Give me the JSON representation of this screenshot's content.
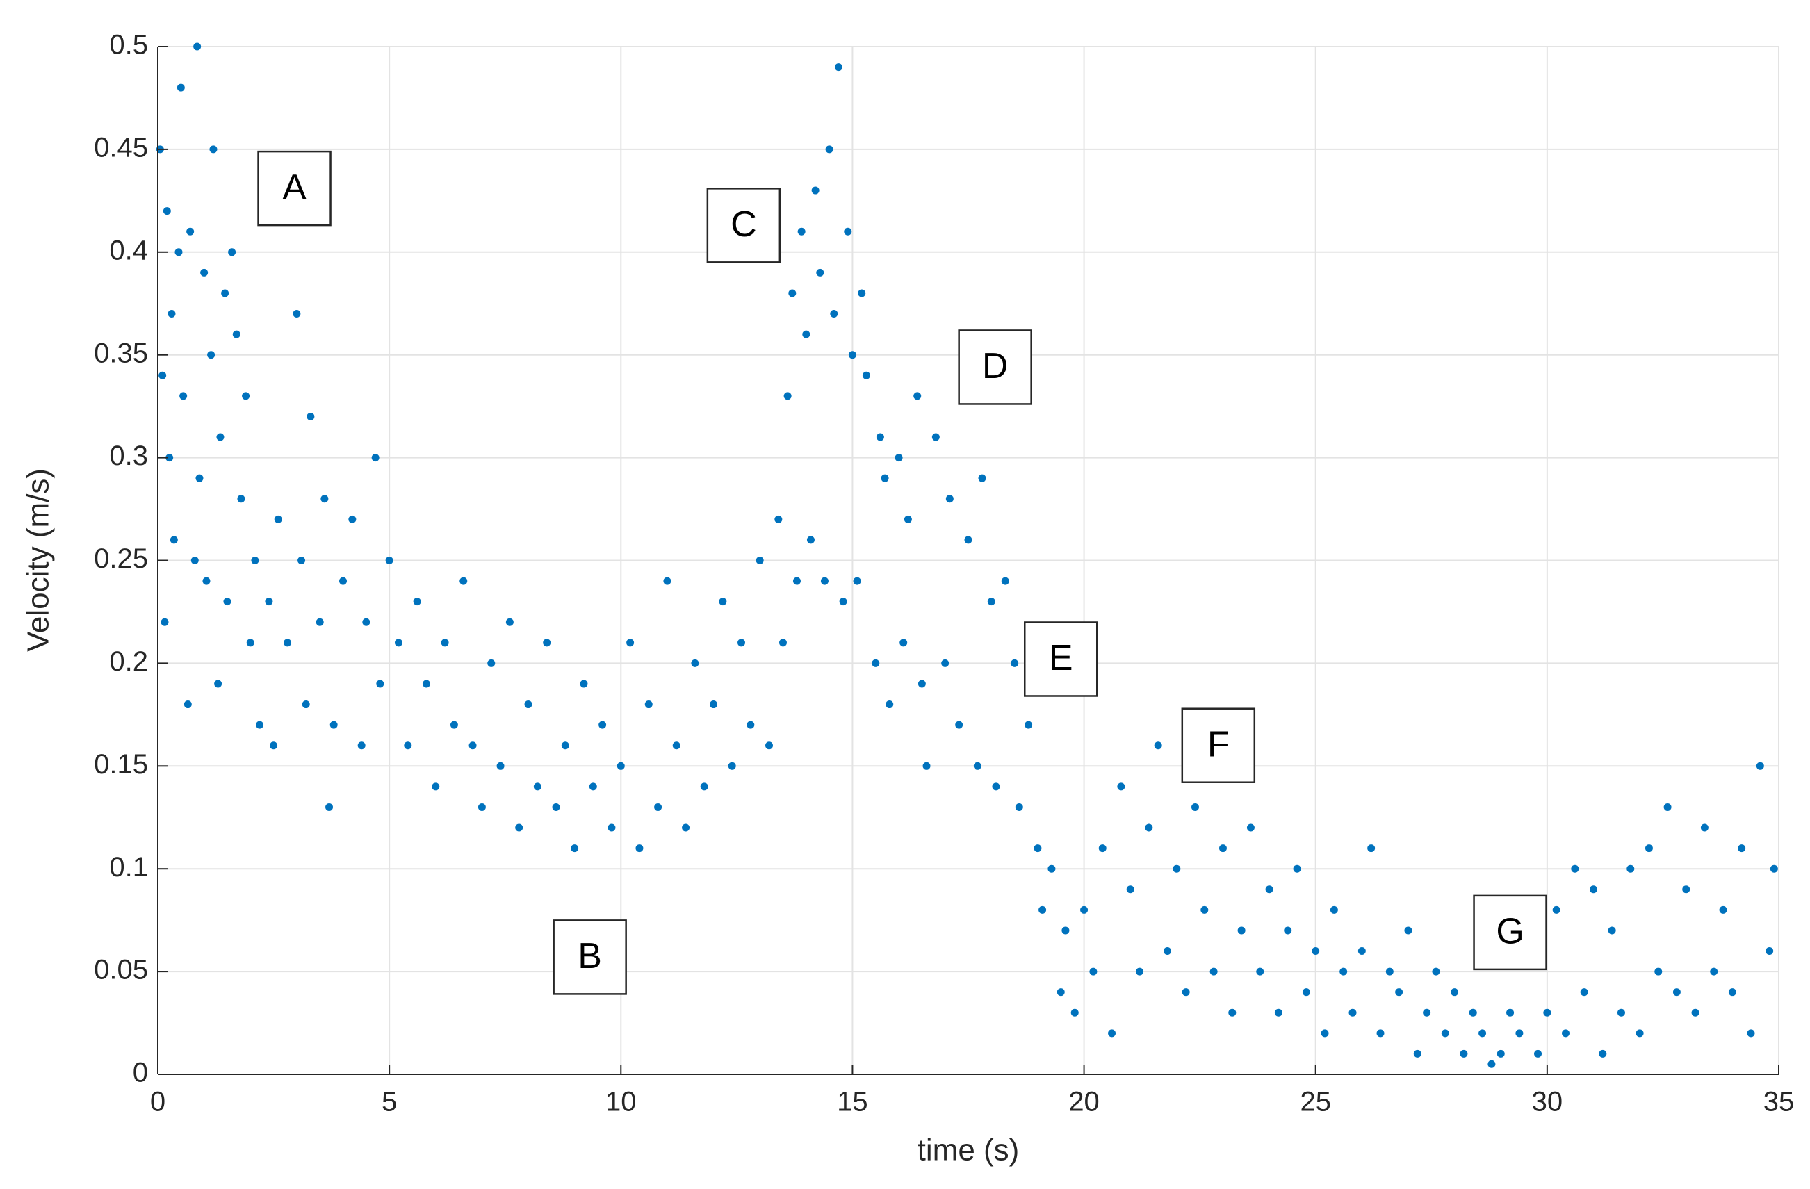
{
  "chart_data": {
    "type": "scatter",
    "x_label": "time (s)",
    "y_label": "Velocity (m/s)",
    "xlim": [
      0,
      35
    ],
    "ylim": [
      0,
      0.5
    ],
    "xticks": [
      0,
      5,
      10,
      15,
      20,
      25,
      30,
      35
    ],
    "yticks": [
      0,
      0.05,
      0.1,
      0.15,
      0.2,
      0.25,
      0.3,
      0.35,
      0.4,
      0.45,
      0.5
    ],
    "grid": true,
    "color": "#0072bd",
    "x": [
      0.05,
      0.1,
      0.15,
      0.2,
      0.25,
      0.3,
      0.35,
      0.45,
      0.5,
      0.55,
      0.65,
      0.7,
      0.8,
      0.85,
      0.9,
      1.0,
      1.05,
      1.15,
      1.2,
      1.3,
      1.35,
      1.45,
      1.5,
      1.6,
      1.7,
      1.8,
      1.9,
      2.0,
      2.1,
      2.2,
      2.4,
      2.5,
      2.6,
      2.8,
      3.0,
      3.1,
      3.2,
      3.3,
      3.5,
      3.6,
      3.7,
      3.8,
      4.0,
      4.2,
      4.4,
      4.5,
      4.7,
      4.8,
      5.0,
      5.2,
      5.4,
      5.6,
      5.8,
      6.0,
      6.2,
      6.4,
      6.6,
      6.8,
      7.0,
      7.2,
      7.4,
      7.6,
      7.8,
      8.0,
      8.2,
      8.4,
      8.6,
      8.8,
      9.0,
      9.2,
      9.4,
      9.6,
      9.8,
      10.0,
      10.2,
      10.4,
      10.6,
      10.8,
      11.0,
      11.2,
      11.4,
      11.6,
      11.8,
      12.0,
      12.2,
      12.4,
      12.6,
      12.8,
      13.0,
      13.2,
      13.4,
      13.5,
      13.6,
      13.7,
      13.8,
      13.9,
      14.0,
      14.1,
      14.2,
      14.3,
      14.4,
      14.5,
      14.6,
      14.7,
      14.8,
      14.9,
      15.0,
      15.1,
      15.2,
      15.3,
      15.5,
      15.6,
      15.7,
      15.8,
      16.0,
      16.1,
      16.2,
      16.4,
      16.5,
      16.6,
      16.8,
      17.0,
      17.1,
      17.3,
      17.5,
      17.7,
      17.8,
      18.0,
      18.1,
      18.3,
      18.5,
      18.6,
      18.8,
      19.0,
      19.1,
      19.3,
      19.5,
      19.6,
      19.8,
      20.0,
      20.2,
      20.4,
      20.6,
      20.8,
      21.0,
      21.2,
      21.4,
      21.6,
      21.8,
      22.0,
      22.2,
      22.4,
      22.6,
      22.8,
      23.0,
      23.2,
      23.4,
      23.6,
      23.8,
      24.0,
      24.2,
      24.4,
      24.6,
      24.8,
      25.0,
      25.2,
      25.4,
      25.6,
      25.8,
      26.0,
      26.2,
      26.4,
      26.6,
      26.8,
      27.0,
      27.2,
      27.4,
      27.6,
      27.8,
      28.0,
      28.2,
      28.4,
      28.6,
      28.8,
      29.0,
      29.2,
      29.4,
      29.6,
      29.8,
      30.0,
      30.2,
      30.4,
      30.6,
      30.8,
      31.0,
      31.2,
      31.4,
      31.6,
      31.8,
      32.0,
      32.2,
      32.4,
      32.6,
      32.8,
      33.0,
      33.2,
      33.4,
      33.6,
      33.8,
      34.0,
      34.2,
      34.4,
      34.6,
      34.8,
      34.9
    ],
    "values": [
      0.45,
      0.34,
      0.22,
      0.42,
      0.3,
      0.37,
      0.26,
      0.4,
      0.48,
      0.33,
      0.18,
      0.41,
      0.25,
      0.5,
      0.29,
      0.39,
      0.24,
      0.35,
      0.45,
      0.19,
      0.31,
      0.38,
      0.23,
      0.4,
      0.36,
      0.28,
      0.33,
      0.21,
      0.25,
      0.17,
      0.23,
      0.16,
      0.27,
      0.21,
      0.37,
      0.25,
      0.18,
      0.32,
      0.22,
      0.28,
      0.13,
      0.17,
      0.24,
      0.27,
      0.16,
      0.22,
      0.3,
      0.19,
      0.25,
      0.21,
      0.16,
      0.23,
      0.19,
      0.14,
      0.21,
      0.17,
      0.24,
      0.16,
      0.13,
      0.2,
      0.15,
      0.22,
      0.12,
      0.18,
      0.14,
      0.21,
      0.13,
      0.16,
      0.11,
      0.19,
      0.14,
      0.17,
      0.12,
      0.15,
      0.21,
      0.11,
      0.18,
      0.13,
      0.24,
      0.16,
      0.12,
      0.2,
      0.14,
      0.18,
      0.23,
      0.15,
      0.21,
      0.17,
      0.25,
      0.16,
      0.27,
      0.21,
      0.33,
      0.38,
      0.24,
      0.41,
      0.36,
      0.26,
      0.43,
      0.39,
      0.24,
      0.45,
      0.37,
      0.49,
      0.23,
      0.41,
      0.35,
      0.24,
      0.38,
      0.34,
      0.2,
      0.31,
      0.29,
      0.18,
      0.3,
      0.21,
      0.27,
      0.33,
      0.19,
      0.15,
      0.31,
      0.2,
      0.28,
      0.17,
      0.26,
      0.15,
      0.29,
      0.23,
      0.14,
      0.24,
      0.2,
      0.13,
      0.17,
      0.11,
      0.08,
      0.1,
      0.04,
      0.07,
      0.03,
      0.08,
      0.05,
      0.11,
      0.02,
      0.14,
      0.09,
      0.05,
      0.12,
      0.16,
      0.06,
      0.1,
      0.04,
      0.13,
      0.08,
      0.05,
      0.11,
      0.03,
      0.07,
      0.12,
      0.05,
      0.09,
      0.03,
      0.07,
      0.1,
      0.04,
      0.06,
      0.02,
      0.08,
      0.05,
      0.03,
      0.06,
      0.11,
      0.02,
      0.05,
      0.04,
      0.07,
      0.01,
      0.03,
      0.05,
      0.02,
      0.04,
      0.01,
      0.03,
      0.02,
      0.005,
      0.01,
      0.03,
      0.02,
      0.06,
      0.01,
      0.03,
      0.08,
      0.02,
      0.1,
      0.04,
      0.09,
      0.01,
      0.07,
      0.03,
      0.1,
      0.02,
      0.11,
      0.05,
      0.13,
      0.04,
      0.09,
      0.03,
      0.12,
      0.05,
      0.08,
      0.04,
      0.11,
      0.02,
      0.15,
      0.06,
      0.1
    ],
    "annotations": [
      {
        "text": "A",
        "x": 2.95,
        "y": 0.431
      },
      {
        "text": "B",
        "x": 9.33,
        "y": 0.057
      },
      {
        "text": "C",
        "x": 12.65,
        "y": 0.413
      },
      {
        "text": "D",
        "x": 18.08,
        "y": 0.344
      },
      {
        "text": "E",
        "x": 19.5,
        "y": 0.202
      },
      {
        "text": "F",
        "x": 22.9,
        "y": 0.16
      },
      {
        "text": "G",
        "x": 29.2,
        "y": 0.069
      }
    ]
  }
}
